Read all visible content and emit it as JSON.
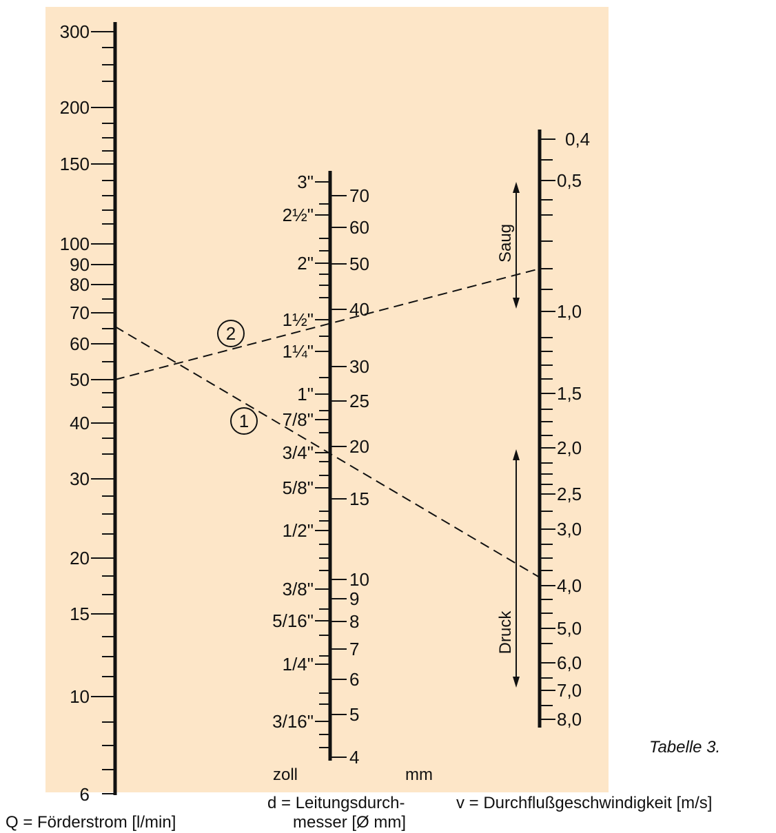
{
  "colors": {
    "background_panel": "#fde6c8",
    "ink": "#111111"
  },
  "caption": "Tabelle 3.",
  "axes": {
    "q": {
      "title": "Q = Förderstrom [l/min]",
      "ticks": [
        "300",
        "200",
        "150",
        "100",
        "90",
        "80",
        "70",
        "60",
        "50",
        "40",
        "30",
        "20",
        "15",
        "10",
        "6"
      ]
    },
    "d": {
      "title_line1": "d = Leitungsdurch-",
      "title_line2": "messer [Ø mm]",
      "zoll_label": "zoll",
      "mm_label": "mm",
      "inch_ticks": [
        "3\"",
        "2½\"",
        "2\"",
        "1½\"",
        "1¼\"",
        "1\"",
        "7/8\"",
        "3/4\"",
        "5/8\"",
        "1/2\"",
        "3/8\"",
        "5/16\"",
        "1/4\"",
        "3/16\""
      ],
      "mm_ticks": [
        "70",
        "60",
        "50",
        "40",
        "30",
        "25",
        "20",
        "15",
        "10",
        "9",
        "8",
        "7",
        "6",
        "5",
        "4"
      ]
    },
    "v": {
      "title": "v = Durchflußgeschwindigkeit [m/s]",
      "ticks": [
        "0,4",
        "0,5",
        "1,0",
        "1,5",
        "2,0",
        "2,5",
        "3,0",
        "4,0",
        "5,0",
        "6,0",
        "7,0",
        "8,0"
      ]
    }
  },
  "ranges": {
    "saug_label": "Saug",
    "druck_label": "Druck"
  },
  "examples": {
    "marker_1": "1",
    "marker_2": "2"
  }
}
